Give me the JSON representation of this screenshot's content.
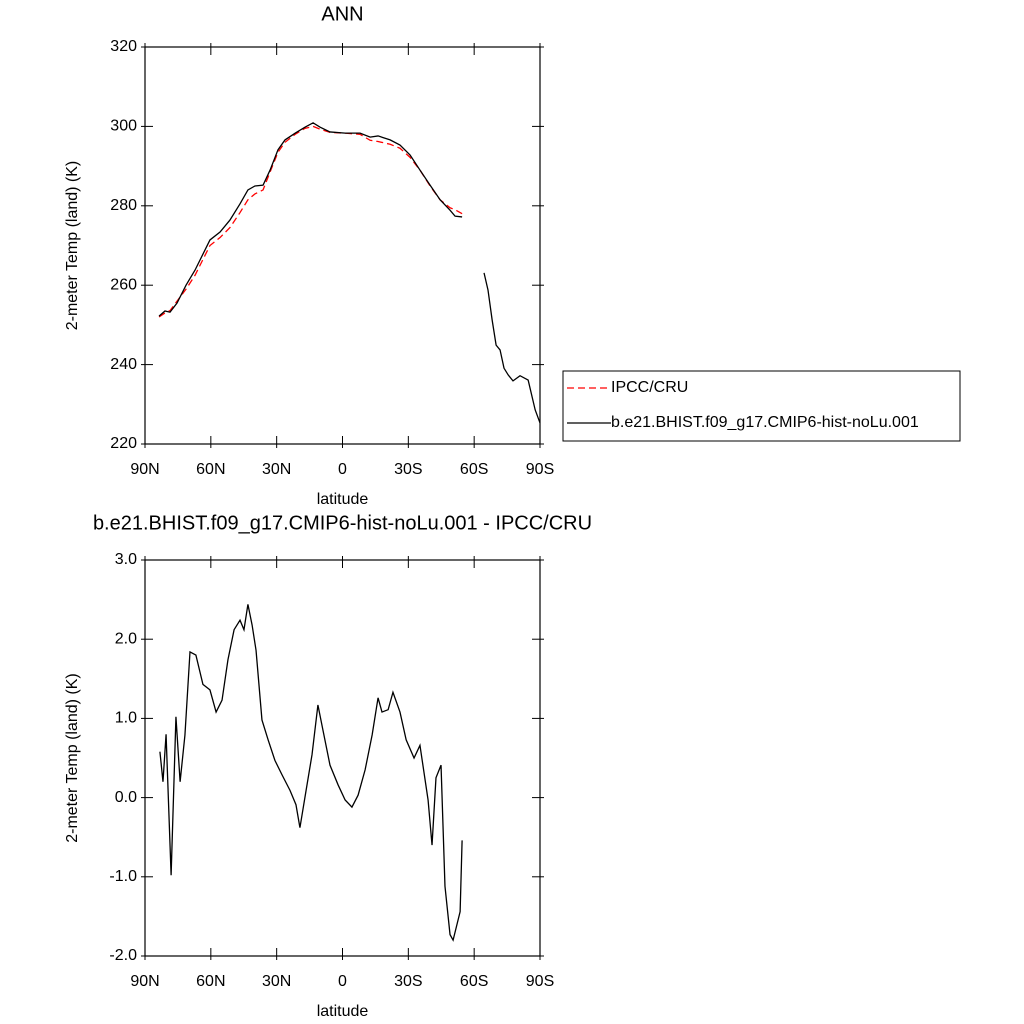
{
  "chart_data": [
    {
      "type": "line",
      "title": "ANN",
      "xlabel": "latitude",
      "ylabel": "2-meter Temp (land) (K)",
      "x": [
        83.6,
        80.9,
        78.6,
        75.4,
        71.3,
        67.2,
        60.4,
        55.8,
        51.3,
        46.7,
        43.1,
        39.9,
        36.2,
        33.0,
        29.4,
        26.2,
        21.6,
        17.1,
        13.4,
        10.2,
        5.7,
        -1.2,
        -8.0,
        -12.6,
        -16.2,
        -21.7,
        -26.2,
        -30.8,
        -35.3,
        -39.9,
        -44.5,
        -49.0,
        -51.3,
        -54.5,
        -60.0,
        -64.5,
        -66.3,
        -68.2,
        -70.0,
        -71.8,
        -73.6,
        -75.5,
        -77.7,
        -80.9,
        -84.6,
        -87.8,
        -90.0
      ],
      "series": [
        {
          "name": "IPCC/CRU",
          "color": "#ff0000",
          "line_style": "dashed",
          "values": [
            252.0,
            253.0,
            253.6,
            256.0,
            259.0,
            262.5,
            270.0,
            272.0,
            274.5,
            278.3,
            281.5,
            283.0,
            284.0,
            288.5,
            293.5,
            296.0,
            298.0,
            299.5,
            300.0,
            299.3,
            298.5,
            298.3,
            298.0,
            296.5,
            296.2,
            295.5,
            294.5,
            292.2,
            289.0,
            285.0,
            281.5,
            279.5,
            279.0,
            278.0,
            null,
            null,
            null,
            null,
            null,
            null,
            null,
            null,
            null,
            null,
            null,
            null,
            null
          ]
        },
        {
          "name": "b.e21.BHIST.f09_g17.CMIP6-hist-noLu.001",
          "color": "#000000",
          "line_style": "solid",
          "values": [
            252.2,
            253.5,
            253.2,
            255.5,
            260.0,
            263.8,
            271.4,
            273.4,
            276.4,
            280.5,
            284.0,
            285.0,
            285.2,
            289.0,
            294.1,
            296.6,
            298.3,
            299.8,
            300.9,
            299.8,
            298.6,
            298.3,
            298.3,
            297.3,
            297.6,
            296.6,
            295.3,
            292.8,
            289.0,
            285.2,
            281.5,
            278.9,
            277.4,
            277.2,
            null,
            263.1,
            258.8,
            251.2,
            244.9,
            243.7,
            239.1,
            237.4,
            235.9,
            237.2,
            236.1,
            228.6,
            225.3
          ]
        }
      ],
      "xlim": [
        90,
        -90
      ],
      "xticks": [
        {
          "value": 90,
          "label": "90N"
        },
        {
          "value": 60,
          "label": "60N"
        },
        {
          "value": 30,
          "label": "30N"
        },
        0,
        {
          "value": -30,
          "label": "30S"
        },
        {
          "value": -60,
          "label": "60S"
        },
        {
          "value": -90,
          "label": "90S"
        }
      ],
      "ylim": [
        220,
        320
      ],
      "yticks": [
        220,
        240,
        260,
        280,
        300,
        320
      ],
      "legend": "right"
    },
    {
      "type": "line",
      "title": "b.e21.BHIST.f09_g17.CMIP6-hist-noLu.001 - IPCC/CRU",
      "xlabel": "latitude",
      "ylabel": "2-meter Temp (land) (K)",
      "x": [
        83.2,
        81.8,
        80.4,
        78.1,
        75.9,
        74.0,
        71.8,
        69.5,
        66.8,
        63.6,
        60.4,
        57.6,
        54.9,
        52.2,
        49.4,
        46.7,
        44.9,
        43.1,
        41.2,
        39.4,
        36.7,
        33.9,
        30.8,
        27.6,
        23.9,
        21.2,
        19.4,
        16.6,
        13.9,
        11.2,
        8.9,
        5.7,
        2.0,
        -1.2,
        -4.3,
        -7.1,
        -10.3,
        -13.5,
        -16.2,
        -18.0,
        -20.8,
        -23.0,
        -26.2,
        -29.0,
        -32.6,
        -35.3,
        -39.0,
        -40.8,
        -42.6,
        -44.9,
        -46.7,
        -49.0,
        -50.4,
        -53.6,
        -54.5
      ],
      "series": [
        {
          "name": "b.e21.BHIST.f09_g17.CMIP6-hist-noLu.001 - IPCC/CRU",
          "color": "#000000",
          "line_style": "solid",
          "values": [
            0.58,
            0.2,
            0.8,
            -0.98,
            1.02,
            0.2,
            0.79,
            1.84,
            1.8,
            1.43,
            1.36,
            1.08,
            1.23,
            1.74,
            2.12,
            2.24,
            2.12,
            2.44,
            2.18,
            1.86,
            0.98,
            0.73,
            0.47,
            0.29,
            0.09,
            -0.09,
            -0.38,
            0.09,
            0.54,
            1.17,
            0.85,
            0.41,
            0.16,
            -0.03,
            -0.12,
            0.03,
            0.35,
            0.79,
            1.26,
            1.08,
            1.11,
            1.33,
            1.08,
            0.73,
            0.5,
            0.66,
            -0.03,
            -0.6,
            0.25,
            0.41,
            -1.12,
            -1.73,
            -1.8,
            -1.44,
            -0.54
          ]
        }
      ],
      "xlim": [
        90,
        -90
      ],
      "xticks": [
        {
          "value": 90,
          "label": "90N"
        },
        {
          "value": 60,
          "label": "60N"
        },
        {
          "value": 30,
          "label": "30N"
        },
        0,
        {
          "value": -30,
          "label": "30S"
        },
        {
          "value": -60,
          "label": "60S"
        },
        {
          "value": -90,
          "label": "90S"
        }
      ],
      "ylim": [
        -2.0,
        3.0
      ],
      "yticks": [
        {
          "value": -2.0,
          "label": "-2.0"
        },
        {
          "value": -1.0,
          "label": "-1.0"
        },
        {
          "value": 0.0,
          "label": "0.0"
        },
        {
          "value": 1.0,
          "label": "1.0"
        },
        {
          "value": 2.0,
          "label": "2.0"
        },
        {
          "value": 3.0,
          "label": "3.0"
        }
      ]
    }
  ]
}
